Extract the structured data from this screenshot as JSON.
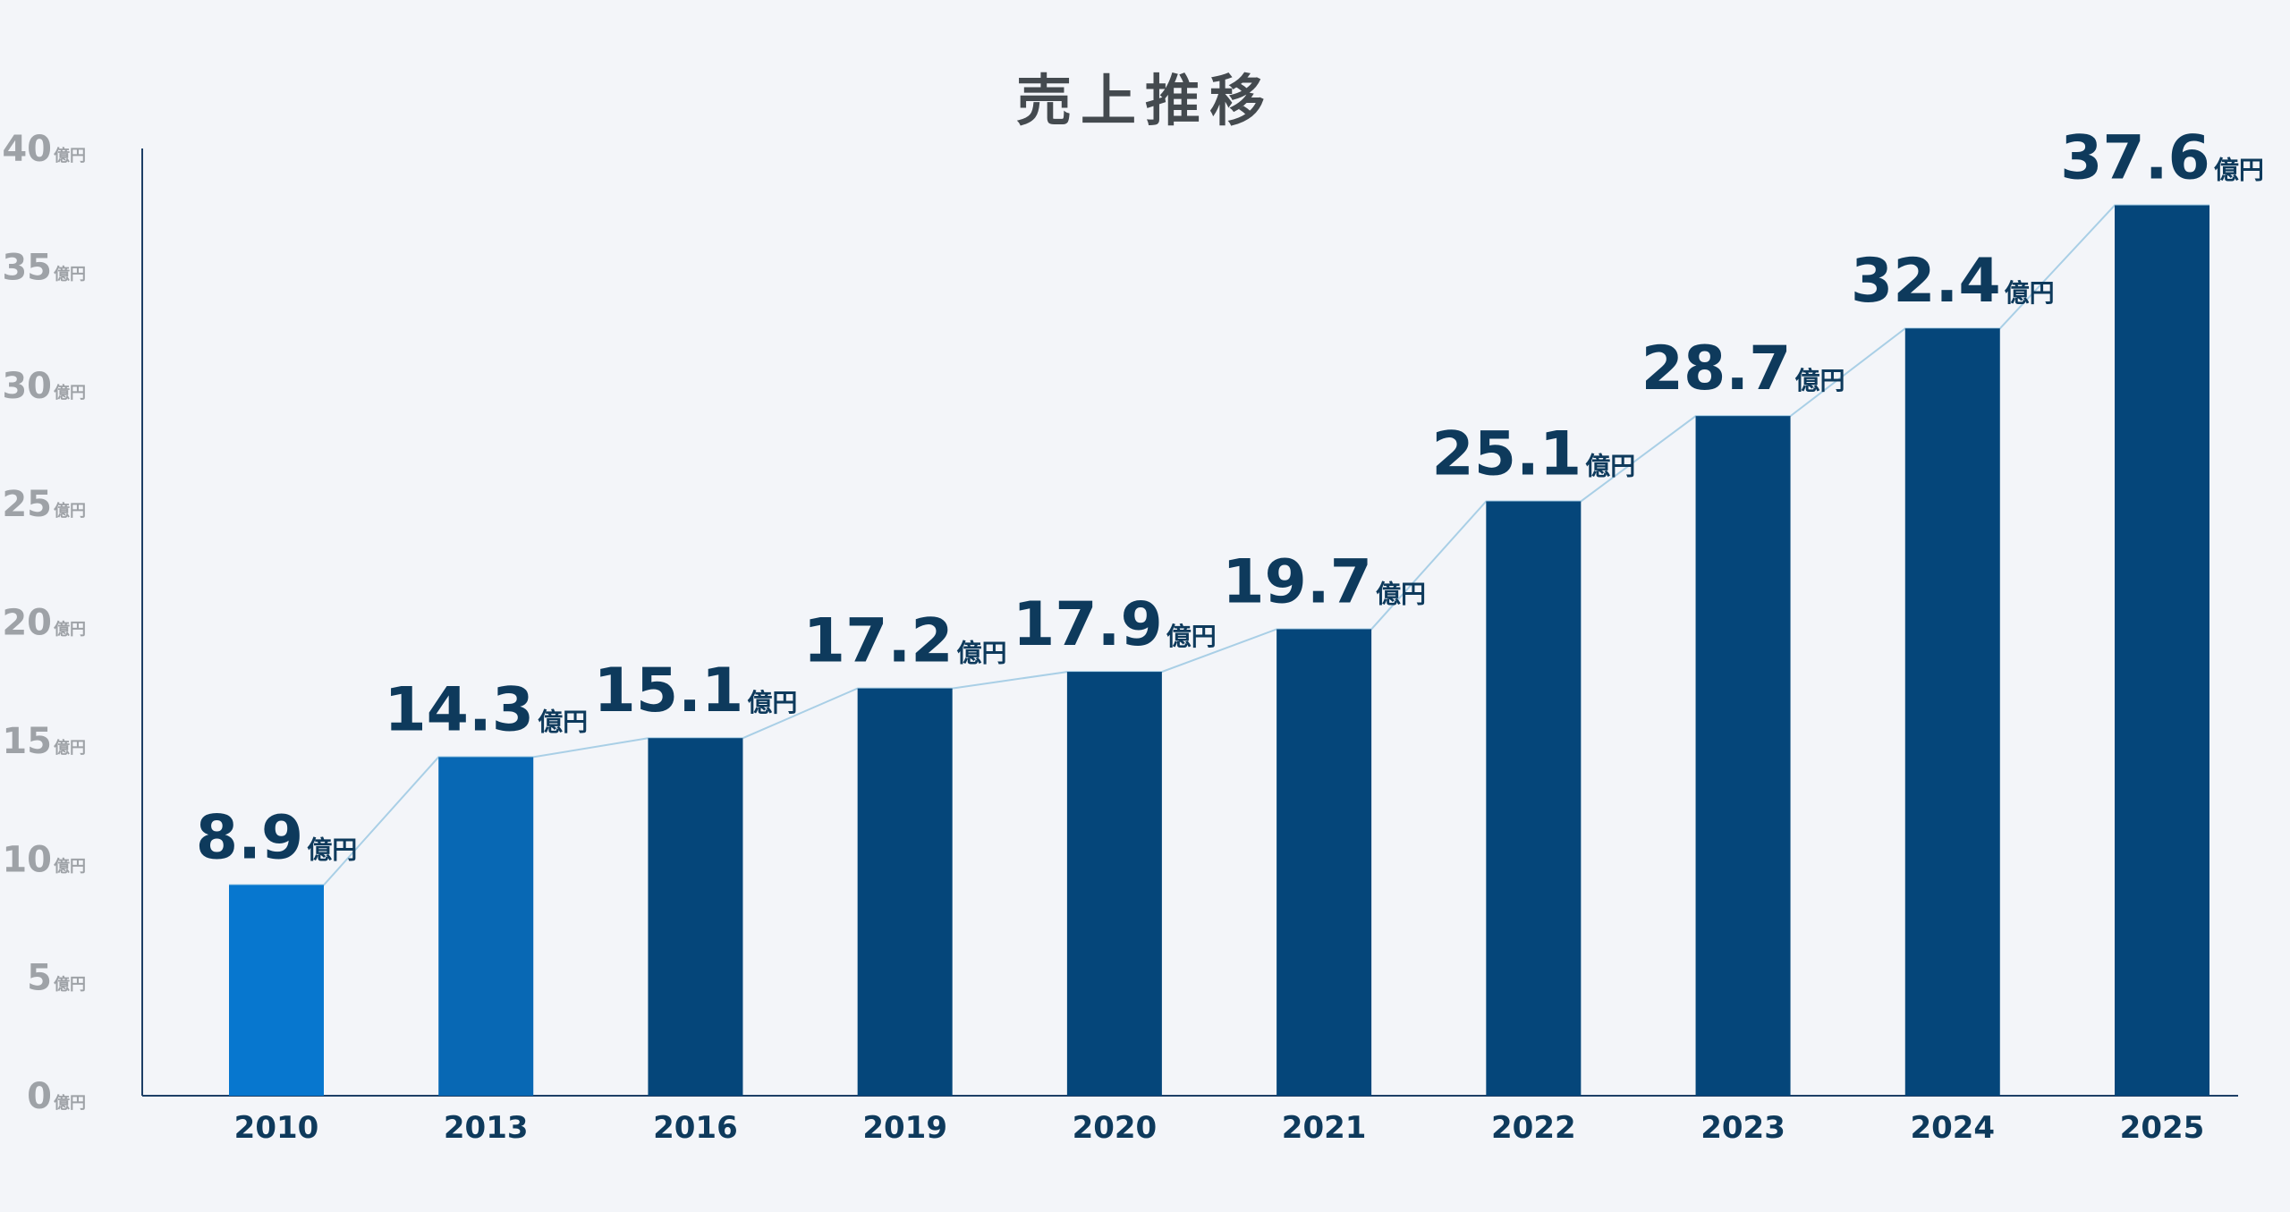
{
  "chart_data": {
    "type": "bar",
    "title": "売上推移",
    "xlabel": "",
    "ylabel": "",
    "unit": "億円",
    "categories": [
      "2010",
      "2013",
      "2016",
      "2019",
      "2020",
      "2021",
      "2022",
      "2023",
      "2024",
      "2025"
    ],
    "values": [
      8.9,
      14.3,
      15.1,
      17.2,
      17.9,
      19.7,
      25.1,
      28.7,
      32.4,
      37.6
    ],
    "data_labels": [
      "8.9",
      "14.3",
      "15.1",
      "17.2",
      "17.9",
      "19.7",
      "25.1",
      "28.7",
      "32.4",
      "37.6"
    ],
    "ylim": [
      0,
      40
    ],
    "yticks": [
      0,
      5,
      10,
      15,
      20,
      25,
      30,
      35,
      40
    ],
    "grid": false,
    "legend": "none",
    "trend_line": true,
    "colors": {
      "bars": [
        "#0777cf",
        "#0868b4",
        "#05467a",
        "#05467a",
        "#05467a",
        "#05467a",
        "#05467a",
        "#05467a",
        "#05467a",
        "#05467a"
      ],
      "trend_line": "#a9cfe6",
      "axis": "#1d3f66",
      "label_text": "#0e3a5c",
      "tick_text": "#9ea2a7"
    }
  }
}
